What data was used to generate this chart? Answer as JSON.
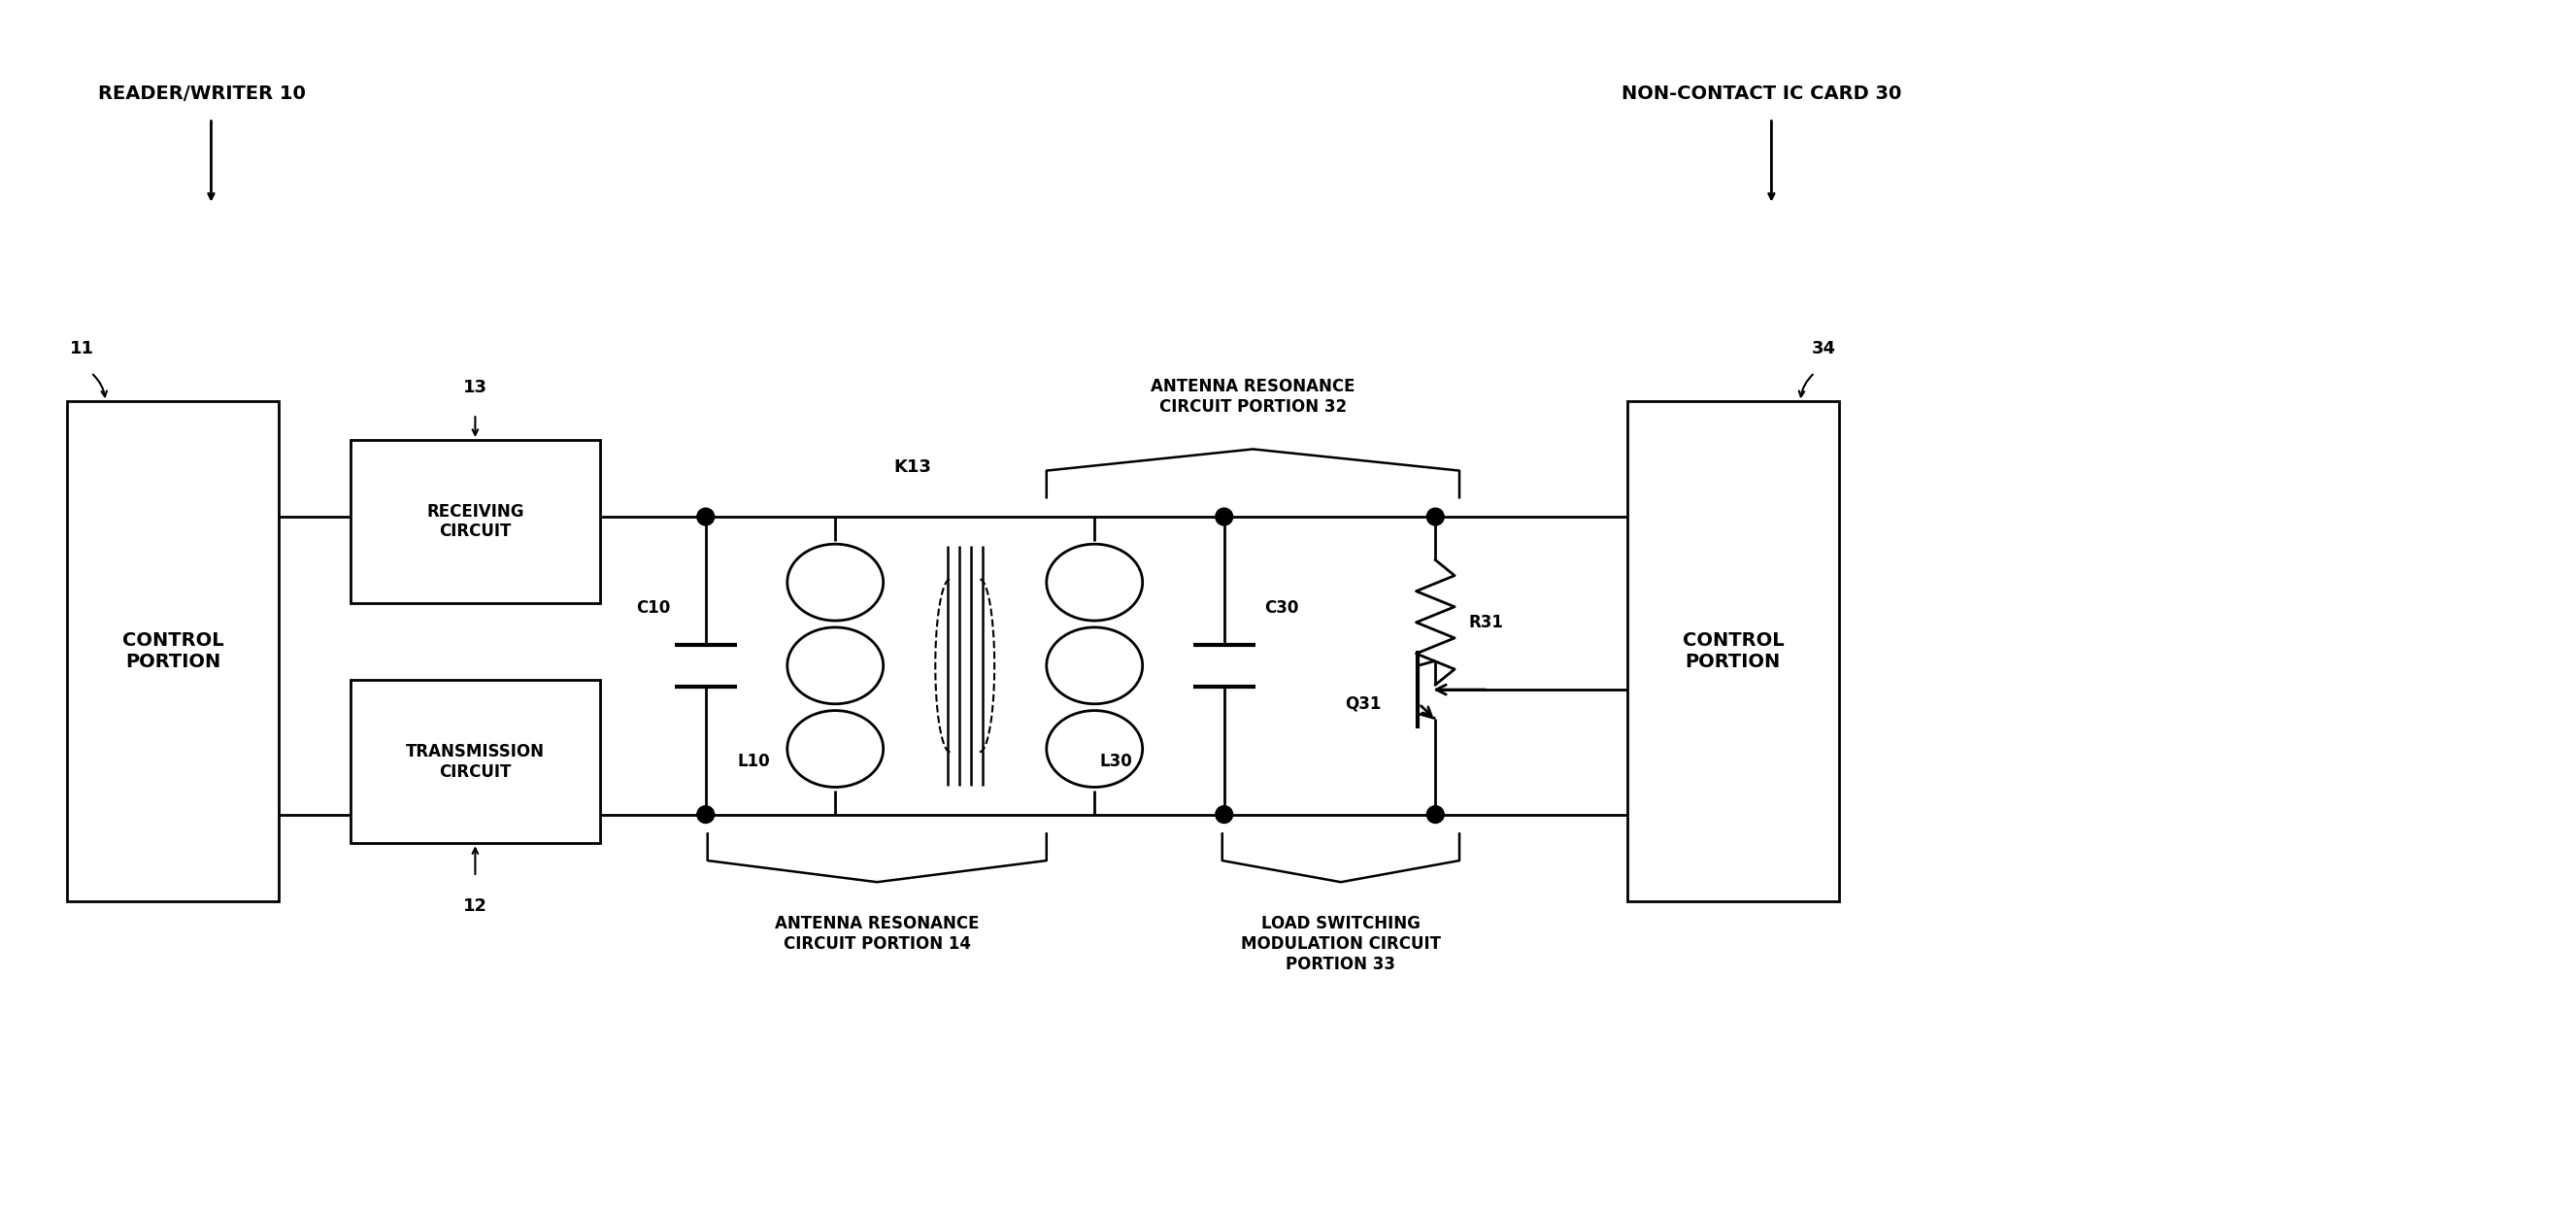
{
  "bg_color": "#ffffff",
  "line_color": "#000000",
  "fig_width": 26.53,
  "fig_height": 12.51,
  "labels": {
    "reader_writer": "READER/WRITER 10",
    "non_contact": "NON-CONTACT IC CARD 30",
    "ref_11": "11",
    "ref_12": "12",
    "ref_13": "13",
    "ref_34": "34",
    "control_portion_left": "CONTROL\nPORTION",
    "control_portion_right": "CONTROL\nPORTION",
    "receiving_circuit": "RECEIVING\nCIRCUIT",
    "transmission_circuit": "TRANSMISSION\nCIRCUIT",
    "antenna_res_14_line1": "ANTENNA RESONANCE",
    "antenna_res_14_line2": "CIRCUIT PORTION 14",
    "antenna_res_32_line1": "ANTENNA RESONANCE",
    "antenna_res_32_line2": "CIRCUIT PORTION 32",
    "load_sw_line1": "LOAD SWITCHING",
    "load_sw_line2": "MODULATION CIRCUIT",
    "load_sw_line3": "PORTION 33",
    "C10": "C10",
    "L10": "L10",
    "C30": "C30",
    "L30": "L30",
    "R31": "R31",
    "Q31": "Q31",
    "K13": "K13"
  }
}
